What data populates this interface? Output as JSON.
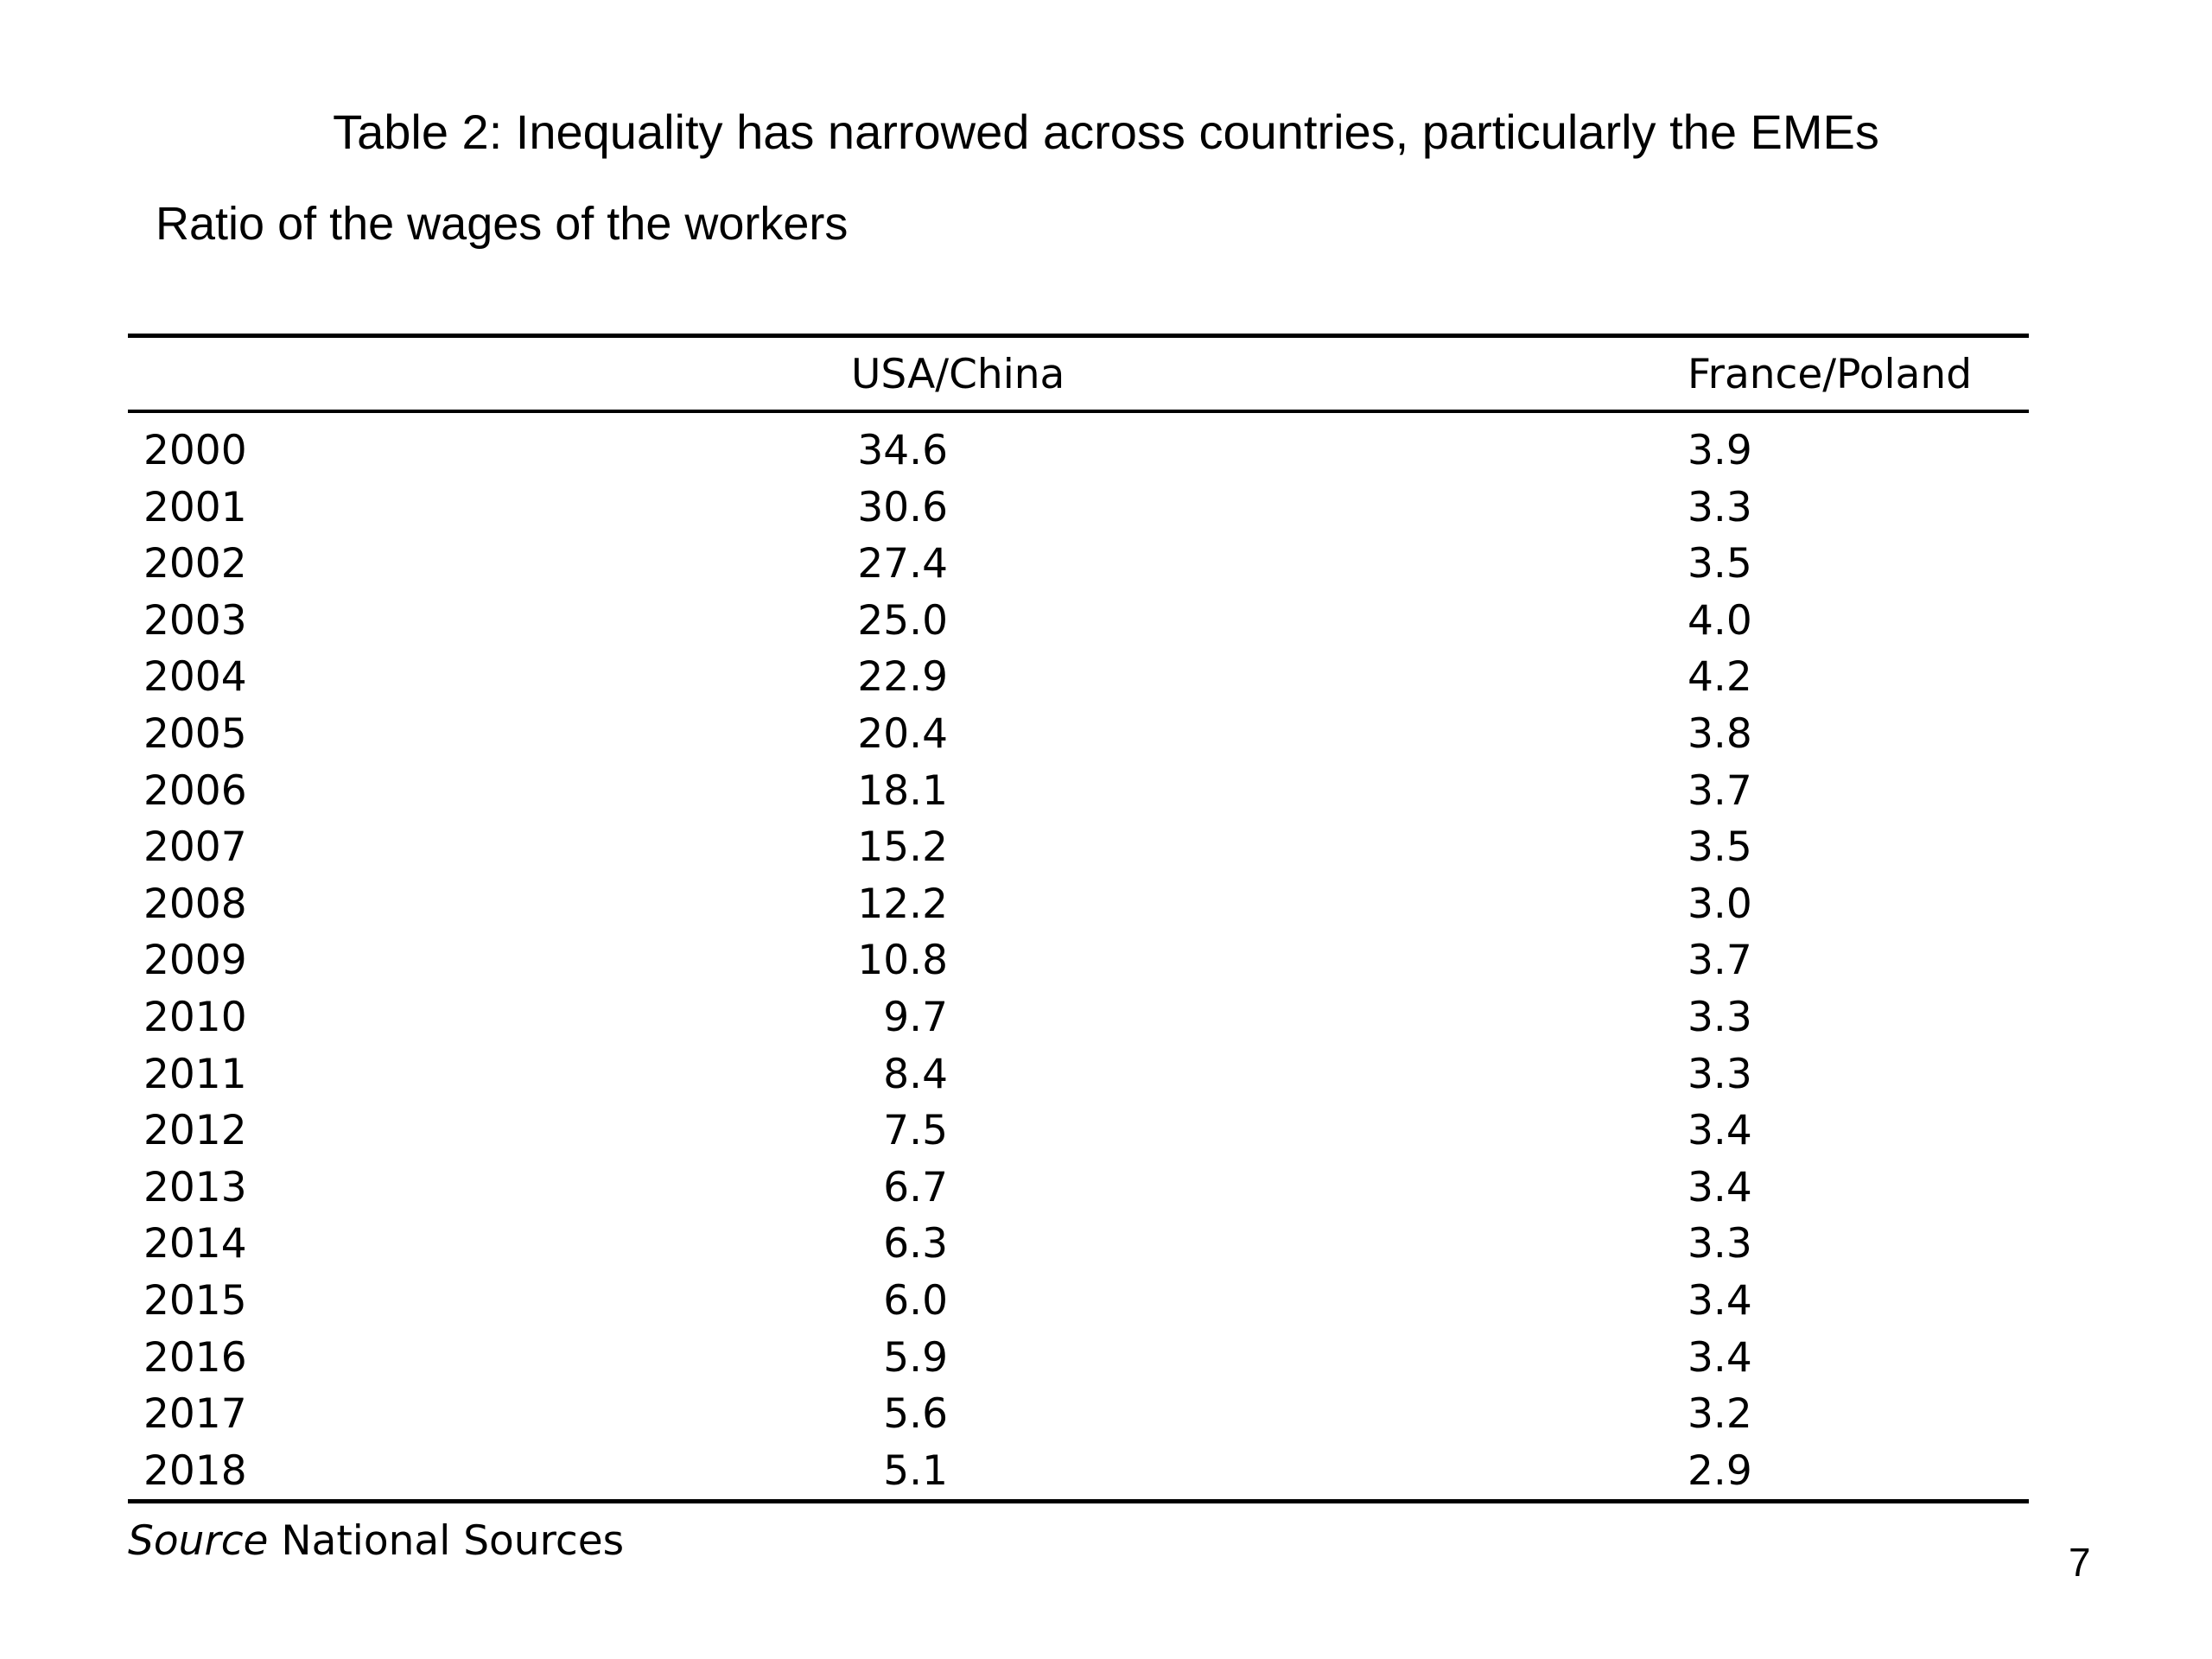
{
  "title": "Table 2:  Inequality has narrowed across countries, particularly the EMEs",
  "subtitle": "Ratio of the wages of the workers",
  "table": {
    "headers": [
      "",
      "USA/China",
      "France/Poland"
    ],
    "rows": [
      {
        "year": "2000",
        "usa_china": "34.6",
        "france_poland": "3.9"
      },
      {
        "year": "2001",
        "usa_china": "30.6",
        "france_poland": "3.3"
      },
      {
        "year": "2002",
        "usa_china": "27.4",
        "france_poland": "3.5"
      },
      {
        "year": "2003",
        "usa_china": "25.0",
        "france_poland": "4.0"
      },
      {
        "year": "2004",
        "usa_china": "22.9",
        "france_poland": "4.2"
      },
      {
        "year": "2005",
        "usa_china": "20.4",
        "france_poland": "3.8"
      },
      {
        "year": "2006",
        "usa_china": "18.1",
        "france_poland": "3.7"
      },
      {
        "year": "2007",
        "usa_china": "15.2",
        "france_poland": "3.5"
      },
      {
        "year": "2008",
        "usa_china": "12.2",
        "france_poland": "3.0"
      },
      {
        "year": "2009",
        "usa_china": "10.8",
        "france_poland": "3.7"
      },
      {
        "year": "2010",
        "usa_china": "9.7",
        "france_poland": "3.3"
      },
      {
        "year": "2011",
        "usa_china": "8.4",
        "france_poland": "3.3"
      },
      {
        "year": "2012",
        "usa_china": "7.5",
        "france_poland": "3.4"
      },
      {
        "year": "2013",
        "usa_china": "6.7",
        "france_poland": "3.4"
      },
      {
        "year": "2014",
        "usa_china": "6.3",
        "france_poland": "3.3"
      },
      {
        "year": "2015",
        "usa_china": "6.0",
        "france_poland": "3.4"
      },
      {
        "year": "2016",
        "usa_china": "5.9",
        "france_poland": "3.4"
      },
      {
        "year": "2017",
        "usa_china": "5.6",
        "france_poland": "3.2"
      },
      {
        "year": "2018",
        "usa_china": "5.1",
        "france_poland": "2.9"
      }
    ]
  },
  "source": {
    "label": "Source",
    "text": "National Sources"
  },
  "page_number": "7"
}
